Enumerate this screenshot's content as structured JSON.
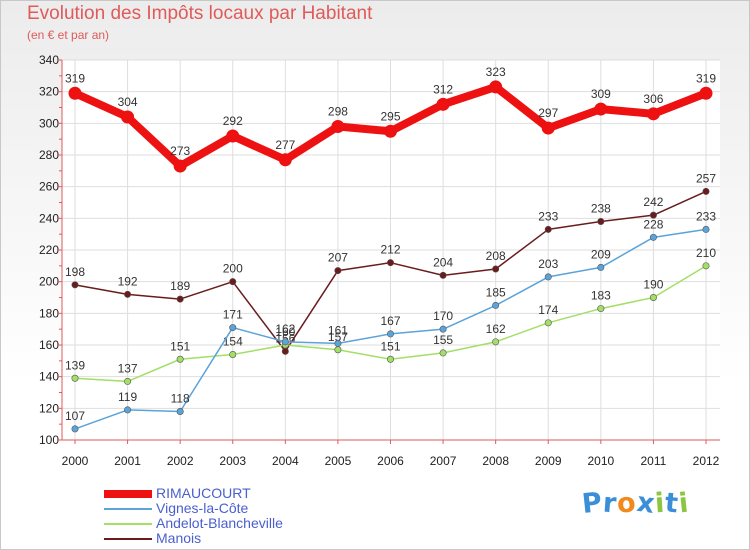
{
  "chart_data": {
    "type": "line",
    "title": "Evolution des Impôts locaux par Habitant",
    "subtitle": "(en € et par an)",
    "xlabel": "",
    "ylabel": "",
    "x": [
      "2000",
      "2001",
      "2002",
      "2003",
      "2004",
      "2005",
      "2006",
      "2007",
      "2008",
      "2009",
      "2010",
      "2011",
      "2012"
    ],
    "ylim": [
      100,
      340
    ],
    "yticks": [
      100,
      120,
      140,
      160,
      180,
      200,
      220,
      240,
      260,
      280,
      300,
      320,
      340
    ],
    "grid": true,
    "legend_position": "bottom-left",
    "series": [
      {
        "name": "RIMAUCOURT",
        "color": "#ee1111",
        "values": [
          319,
          304,
          273,
          292,
          277,
          298,
          295,
          312,
          323,
          297,
          309,
          306,
          319
        ]
      },
      {
        "name": "Vignes-la-Côte",
        "color": "#5ba3d9",
        "values": [
          107,
          119,
          118,
          171,
          162,
          161,
          167,
          170,
          185,
          203,
          209,
          228,
          233
        ]
      },
      {
        "name": "Andelot-Blancheville",
        "color": "#a2df67",
        "values": [
          139,
          137,
          151,
          154,
          160,
          157,
          151,
          155,
          162,
          174,
          183,
          190,
          210
        ]
      },
      {
        "name": "Manois",
        "color": "#6a1c1c",
        "values": [
          198,
          192,
          189,
          200,
          156,
          207,
          212,
          204,
          208,
          233,
          238,
          242,
          257
        ]
      }
    ]
  },
  "brand": {
    "letters": [
      "P",
      "r",
      "o",
      "x",
      "i",
      "t",
      "i"
    ],
    "colors": [
      "#3a8fd8",
      "#3a8fd8",
      "#f08a1c",
      "#3a8fd8",
      "#8cc63f",
      "#3a8fd8",
      "#8cc63f"
    ]
  }
}
